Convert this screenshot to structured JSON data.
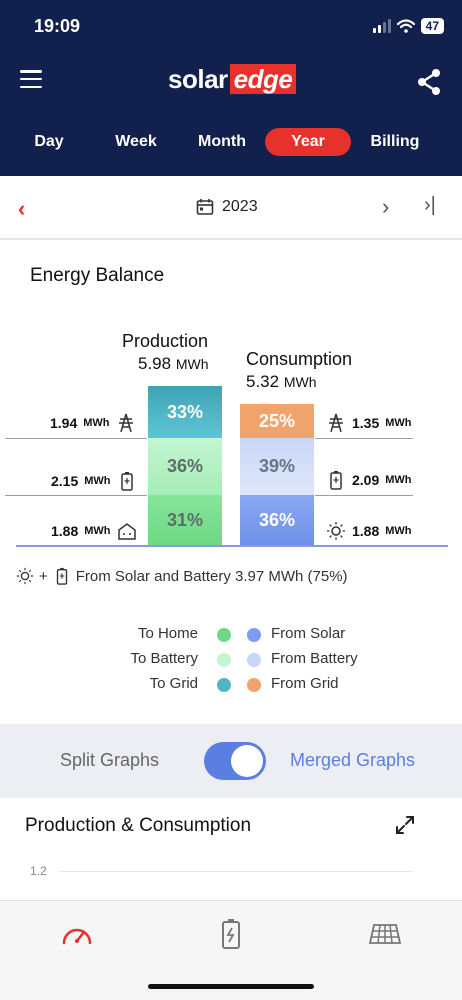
{
  "status_bar": {
    "time": "19:09",
    "battery": "47"
  },
  "header": {
    "logo_solar": "solar",
    "logo_edge": "edge",
    "tabs": [
      {
        "label": "Day"
      },
      {
        "label": "Week"
      },
      {
        "label": "Month"
      },
      {
        "label": "Year",
        "active": true
      },
      {
        "label": "Billing"
      }
    ]
  },
  "date_bar": {
    "period": "2023"
  },
  "energy_balance": {
    "title": "Energy Balance",
    "production": {
      "title": "Production",
      "total_value": "5.98",
      "total_unit": "MWh",
      "rows": [
        {
          "value": "1.94",
          "unit": "MWh",
          "percent": "33%",
          "icon": "grid-tower-icon"
        },
        {
          "value": "2.15",
          "unit": "MWh",
          "percent": "36%",
          "icon": "battery-icon"
        },
        {
          "value": "1.88",
          "unit": "MWh",
          "percent": "31%",
          "icon": "home-icon"
        }
      ]
    },
    "consumption": {
      "title": "Consumption",
      "total_value": "5.32",
      "total_unit": "MWh",
      "rows": [
        {
          "value": "1.35",
          "unit": "MWh",
          "percent": "25%",
          "icon": "grid-tower-icon"
        },
        {
          "value": "2.09",
          "unit": "MWh",
          "percent": "39%",
          "icon": "battery-icon"
        },
        {
          "value": "1.88",
          "unit": "MWh",
          "percent": "36%",
          "icon": "sun-icon"
        }
      ]
    },
    "self_consumption_text": "From Solar and Battery 3.97 MWh (75%)",
    "colors": {
      "to_home": "#7ddf8e",
      "to_battery": "#c3f6d0",
      "to_grid": "#4fb5c4",
      "from_solar": "#7b9cf0",
      "from_battery": "#c9d6f6",
      "from_grid": "#f0a46c"
    }
  },
  "legend": {
    "rows": [
      {
        "left": "To Home",
        "right": "From Solar"
      },
      {
        "left": "To Battery",
        "right": "From Battery"
      },
      {
        "left": "To Grid",
        "right": "From Grid"
      }
    ]
  },
  "graph_toggle": {
    "split_label": "Split Graphs",
    "merged_label": "Merged Graphs",
    "merged_on": true
  },
  "production_consumption": {
    "title": "Production & Consumption",
    "y_tick": "1.2"
  }
}
